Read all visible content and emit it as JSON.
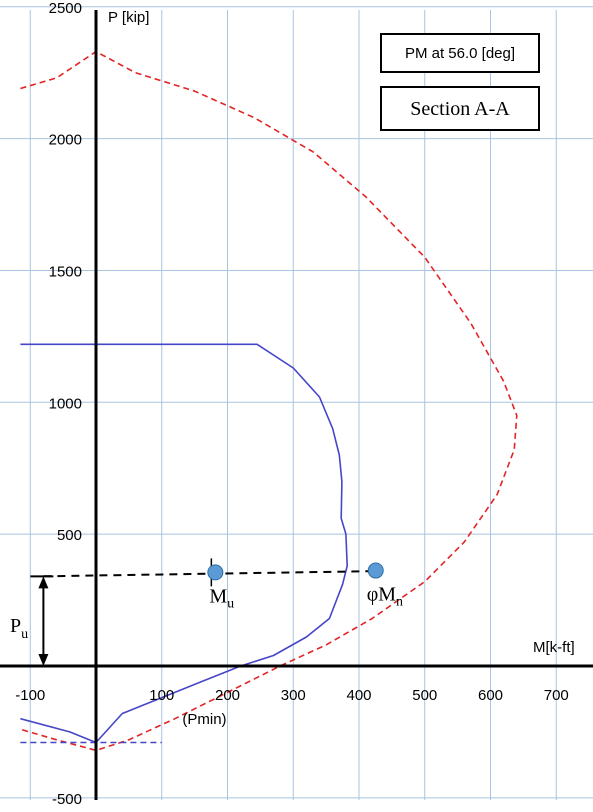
{
  "chart_data": {
    "type": "line",
    "title_box": "PM at 56.0 [deg]",
    "section_box": "Section A-A",
    "xlabel": "M[k-ft]",
    "ylabel": "P [kip]",
    "xlim": [
      -100,
      700
    ],
    "ylim": [
      -500,
      2500
    ],
    "x_ticks": [
      -100,
      100,
      200,
      300,
      400,
      500,
      600,
      700
    ],
    "x_tick_labels": [
      "-100",
      "100",
      "200",
      "300",
      "400",
      "500",
      "600",
      "700"
    ],
    "y_ticks": [
      2500,
      2000,
      1500,
      1000,
      500,
      -500
    ],
    "y_tick_labels": [
      "2500",
      "2000",
      "1500",
      "1000",
      "500",
      "-500"
    ],
    "pmin_label": "(Pmin)",
    "colors": {
      "design": "#4646c8",
      "nominal": "#e32424",
      "grid": "#a9c4e0",
      "demand": "#000000",
      "marker": "#5b9bd5"
    },
    "series": [
      {
        "style": "solid",
        "points": [
          [
            -115,
            1220
          ],
          [
            245,
            1220
          ],
          [
            300,
            1130
          ],
          [
            340,
            1020
          ],
          [
            360,
            900
          ],
          [
            370,
            800
          ],
          [
            374,
            700
          ],
          [
            373,
            560
          ],
          [
            380,
            500
          ],
          [
            382,
            380
          ],
          [
            375,
            310
          ],
          [
            355,
            180
          ],
          [
            320,
            110
          ],
          [
            270,
            40
          ],
          [
            220,
            0
          ],
          [
            160,
            -60
          ],
          [
            100,
            -120
          ],
          [
            40,
            -180
          ],
          [
            0,
            -290
          ],
          [
            -40,
            -250
          ],
          [
            -115,
            -200
          ]
        ]
      },
      {
        "style": "dashed",
        "points": [
          [
            -115,
            2190
          ],
          [
            -60,
            2230
          ],
          [
            0,
            2330
          ],
          [
            60,
            2250
          ],
          [
            150,
            2180
          ],
          [
            240,
            2080
          ],
          [
            330,
            1950
          ],
          [
            410,
            1780
          ],
          [
            500,
            1550
          ],
          [
            570,
            1300
          ],
          [
            620,
            1080
          ],
          [
            640,
            950
          ],
          [
            636,
            820
          ],
          [
            610,
            650
          ],
          [
            560,
            470
          ],
          [
            500,
            320
          ],
          [
            420,
            180
          ],
          [
            350,
            80
          ],
          [
            280,
            0
          ],
          [
            200,
            -100
          ],
          [
            120,
            -200
          ],
          [
            50,
            -280
          ],
          [
            0,
            -320
          ],
          [
            -60,
            -280
          ],
          [
            -115,
            -240
          ]
        ]
      },
      {
        "style": "dashed",
        "points": [
          [
            -115,
            -290
          ],
          [
            100,
            -290
          ]
        ]
      },
      {
        "style": "dashed",
        "points": [
          [
            -80,
            340
          ],
          [
            430,
            360
          ]
        ]
      }
    ],
    "markers": [
      {
        "label": "M",
        "subscript": "u",
        "x": 180,
        "y": 355
      },
      {
        "label": "φM",
        "subscript": "n",
        "x": 430,
        "y": 362
      }
    ],
    "pu_arrow": {
      "label": "P",
      "subscript": "u",
      "x": -80,
      "from": 0,
      "to": 340
    }
  }
}
